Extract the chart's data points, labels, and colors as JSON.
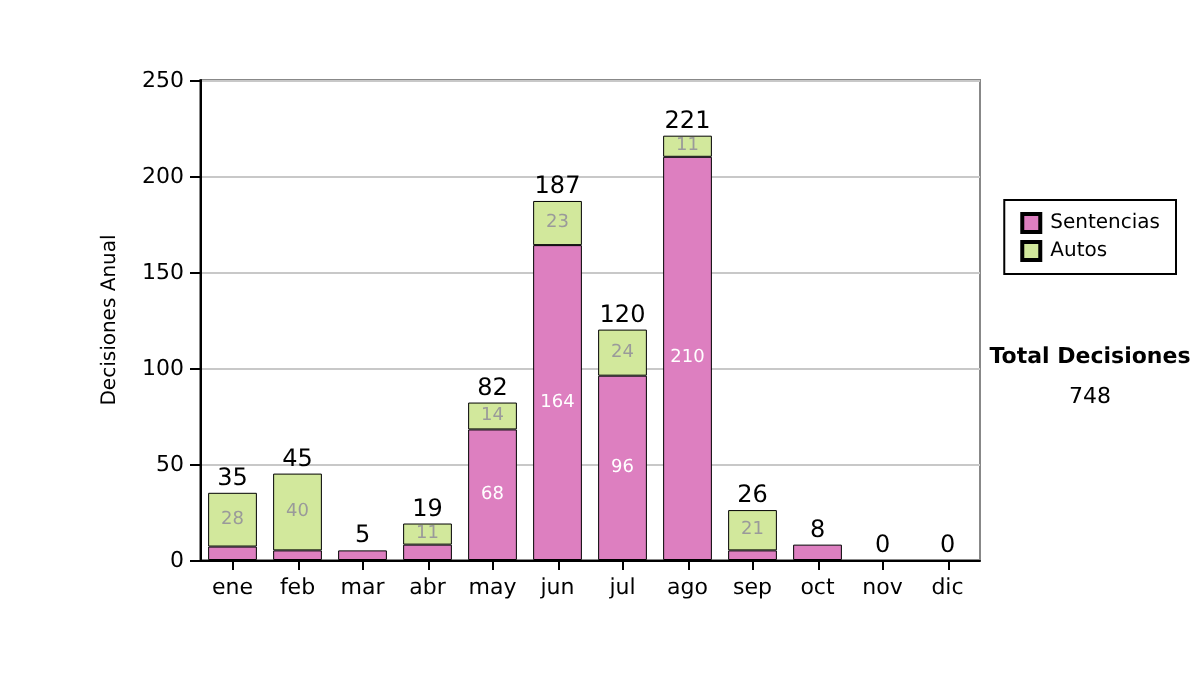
{
  "chart_data": {
    "type": "bar",
    "stacked": true,
    "ylabel": "Decisiones Anual",
    "categories": [
      "ene",
      "feb",
      "mar",
      "abr",
      "may",
      "jun",
      "jul",
      "ago",
      "sep",
      "oct",
      "nov",
      "dic"
    ],
    "series": [
      {
        "name": "Sentencias",
        "color": "#dd7fc0",
        "values": [
          7,
          5,
          5,
          8,
          68,
          164,
          96,
          210,
          5,
          8,
          0,
          0
        ],
        "value_labels": [
          null,
          null,
          null,
          null,
          "68",
          "164",
          "96",
          "210",
          null,
          null,
          null,
          null
        ]
      },
      {
        "name": "Autos",
        "color": "#d2e89c",
        "values": [
          28,
          40,
          null,
          11,
          14,
          23,
          24,
          11,
          21,
          0,
          0,
          0
        ],
        "value_labels": [
          "28",
          "40",
          null,
          "11",
          "14",
          "23",
          "24",
          "11",
          "21",
          null,
          null,
          null
        ]
      }
    ],
    "totals": [
      "35",
      "45",
      "5",
      "19",
      "82",
      "187",
      "120",
      "221",
      "26",
      "8",
      "0",
      "0"
    ],
    "ylim": [
      0,
      250
    ],
    "yticks": [
      0,
      50,
      100,
      150,
      200,
      250
    ],
    "grid": "y",
    "legend": "right",
    "annotations": [
      "Total Decisiones",
      "748"
    ]
  }
}
